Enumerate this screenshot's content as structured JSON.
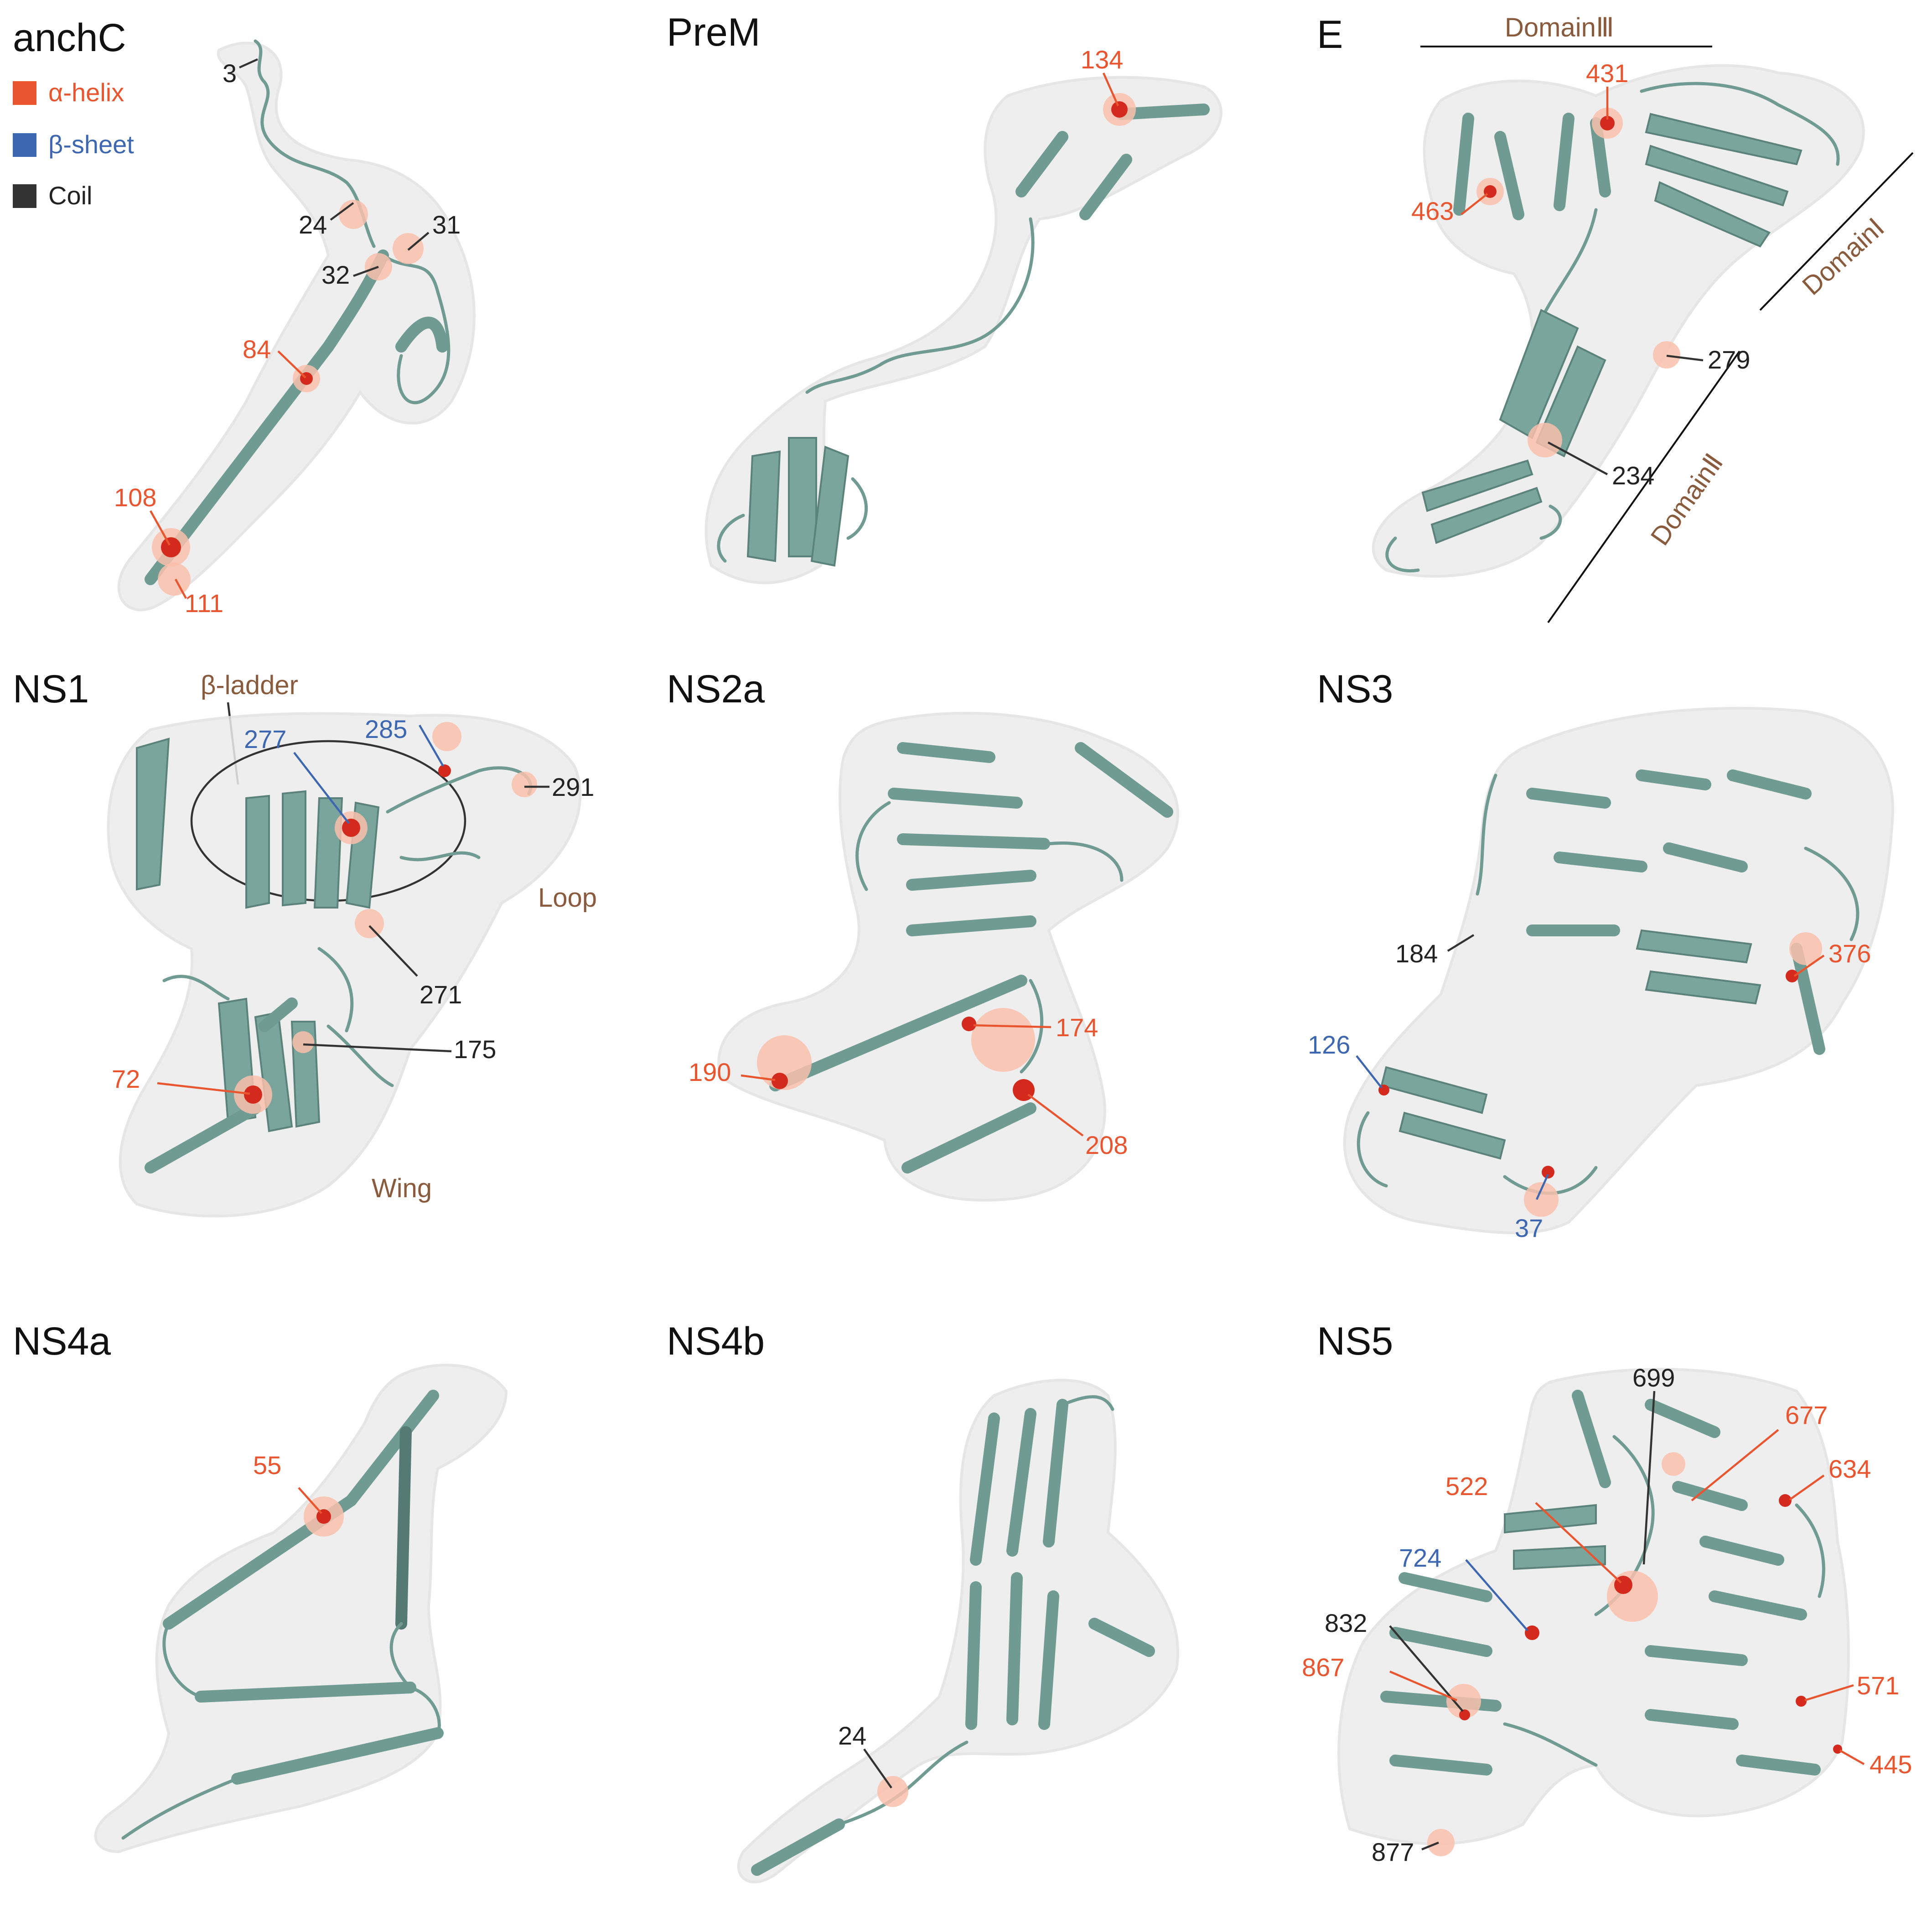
{
  "colors": {
    "helix": "#e8552e",
    "sheet": "#3d67b0",
    "coil": "#333333",
    "region_label": "#8a5a3c",
    "protein_ribbon": "#6f9b92",
    "surface": "#ececec",
    "mutation_site": "#d42a1e"
  },
  "legend": [
    {
      "label": "α-helix",
      "color": "#e8552e"
    },
    {
      "label": "β-sheet",
      "color": "#3d67b0"
    },
    {
      "label": "Coil",
      "color": "#333333"
    }
  ],
  "panels": [
    {
      "title": "anchC",
      "sites": [
        {
          "label": "3",
          "type": "coil"
        },
        {
          "label": "24",
          "type": "coil"
        },
        {
          "label": "31",
          "type": "coil"
        },
        {
          "label": "32",
          "type": "coil"
        },
        {
          "label": "84",
          "type": "helix"
        },
        {
          "label": "108",
          "type": "helix"
        },
        {
          "label": "111",
          "type": "helix"
        }
      ]
    },
    {
      "title": "PreM",
      "sites": [
        {
          "label": "134",
          "type": "helix"
        }
      ]
    },
    {
      "title": "E",
      "regions": [
        "DomainⅢ",
        "DomainⅠ",
        "DomainⅡ"
      ],
      "sites": [
        {
          "label": "431",
          "type": "helix"
        },
        {
          "label": "463",
          "type": "helix"
        },
        {
          "label": "279",
          "type": "coil"
        },
        {
          "label": "234",
          "type": "coil"
        }
      ]
    },
    {
      "title": "NS1",
      "regions": [
        "β-ladder",
        "Loop",
        "Wing"
      ],
      "sites": [
        {
          "label": "277",
          "type": "sheet"
        },
        {
          "label": "285",
          "type": "sheet"
        },
        {
          "label": "291",
          "type": "coil"
        },
        {
          "label": "271",
          "type": "coil"
        },
        {
          "label": "175",
          "type": "coil"
        },
        {
          "label": "72",
          "type": "helix"
        }
      ]
    },
    {
      "title": "NS2a",
      "sites": [
        {
          "label": "174",
          "type": "helix"
        },
        {
          "label": "190",
          "type": "helix"
        },
        {
          "label": "208",
          "type": "helix"
        }
      ]
    },
    {
      "title": "NS3",
      "sites": [
        {
          "label": "184",
          "type": "coil"
        },
        {
          "label": "376",
          "type": "helix"
        },
        {
          "label": "126",
          "type": "sheet"
        },
        {
          "label": "37",
          "type": "sheet"
        }
      ]
    },
    {
      "title": "NS4a",
      "sites": [
        {
          "label": "55",
          "type": "helix"
        }
      ]
    },
    {
      "title": "NS4b",
      "sites": [
        {
          "label": "24",
          "type": "coil"
        }
      ]
    },
    {
      "title": "NS5",
      "sites": [
        {
          "label": "699",
          "type": "coil"
        },
        {
          "label": "677",
          "type": "helix"
        },
        {
          "label": "634",
          "type": "helix"
        },
        {
          "label": "522",
          "type": "helix"
        },
        {
          "label": "724",
          "type": "sheet"
        },
        {
          "label": "832",
          "type": "coil"
        },
        {
          "label": "867",
          "type": "helix"
        },
        {
          "label": "571",
          "type": "helix"
        },
        {
          "label": "445",
          "type": "helix"
        },
        {
          "label": "877",
          "type": "coil"
        }
      ]
    }
  ]
}
